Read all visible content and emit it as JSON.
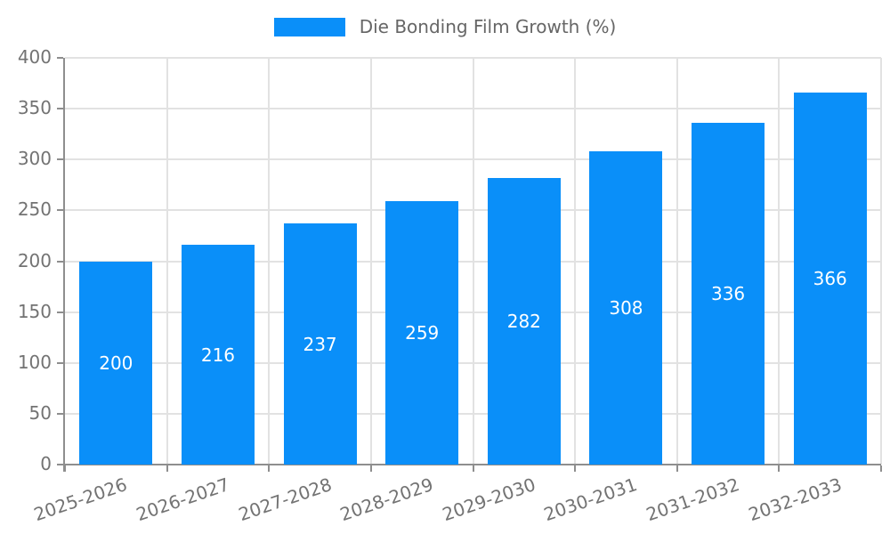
{
  "chart_data": {
    "type": "bar",
    "title": "",
    "legend_label": "Die Bonding Film Growth (%)",
    "legend_position": "top-center",
    "categories": [
      "2025-2026",
      "2026-2027",
      "2027-2028",
      "2028-2029",
      "2029-2030",
      "2030-2031",
      "2031-2032",
      "2032-2033"
    ],
    "values": [
      200,
      216,
      237,
      259,
      282,
      308,
      336,
      366
    ],
    "xlabel": "",
    "ylabel": "",
    "ylim": [
      0,
      400
    ],
    "ytick_step": 50,
    "ytick_labels": [
      "0",
      "50",
      "100",
      "150",
      "200",
      "250",
      "300",
      "350",
      "400"
    ],
    "grid": true,
    "bar_labels_inside": true,
    "colors": {
      "bar": "#0a8ff9",
      "bar_label": "#ffffff",
      "grid": "#e2e2e2",
      "axis": "#8e8e8e",
      "tick_label": "#737373",
      "legend_text": "#666666",
      "background": "#ffffff"
    }
  }
}
